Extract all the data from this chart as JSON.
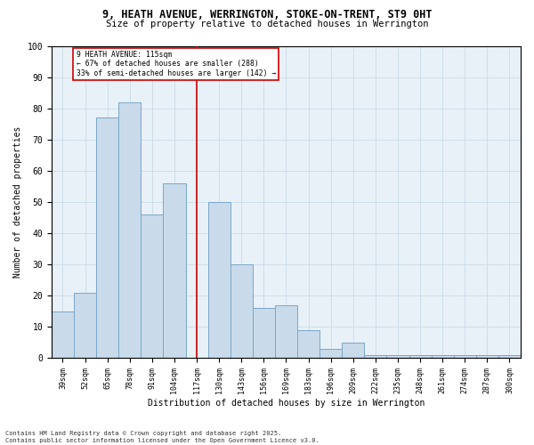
{
  "title1": "9, HEATH AVENUE, WERRINGTON, STOKE-ON-TRENT, ST9 0HT",
  "title2": "Size of property relative to detached houses in Werrington",
  "xlabel": "Distribution of detached houses by size in Werrington",
  "ylabel": "Number of detached properties",
  "categories": [
    "39sqm",
    "52sqm",
    "65sqm",
    "78sqm",
    "91sqm",
    "104sqm",
    "117sqm",
    "130sqm",
    "143sqm",
    "156sqm",
    "169sqm",
    "183sqm",
    "196sqm",
    "209sqm",
    "222sqm",
    "235sqm",
    "248sqm",
    "261sqm",
    "274sqm",
    "287sqm",
    "300sqm"
  ],
  "values": [
    15,
    21,
    77,
    82,
    46,
    56,
    0,
    50,
    30,
    16,
    17,
    9,
    3,
    5,
    1,
    1,
    1,
    1,
    1,
    1,
    1
  ],
  "bar_color": "#c9daea",
  "bar_edge_color": "#7aa8c8",
  "vline_x": 6,
  "vline_color": "#cc0000",
  "annotation_line1": "9 HEATH AVENUE: 115sqm",
  "annotation_line2": "← 67% of detached houses are smaller (288)",
  "annotation_line3": "33% of semi-detached houses are larger (142) →",
  "annotation_box_color": "#cc0000",
  "ylim": [
    0,
    100
  ],
  "yticks": [
    0,
    10,
    20,
    30,
    40,
    50,
    60,
    70,
    80,
    90,
    100
  ],
  "grid_color": "#c8dce8",
  "bg_color": "#e8f0f8",
  "footer1": "Contains HM Land Registry data © Crown copyright and database right 2025.",
  "footer2": "Contains public sector information licensed under the Open Government Licence v3.0."
}
